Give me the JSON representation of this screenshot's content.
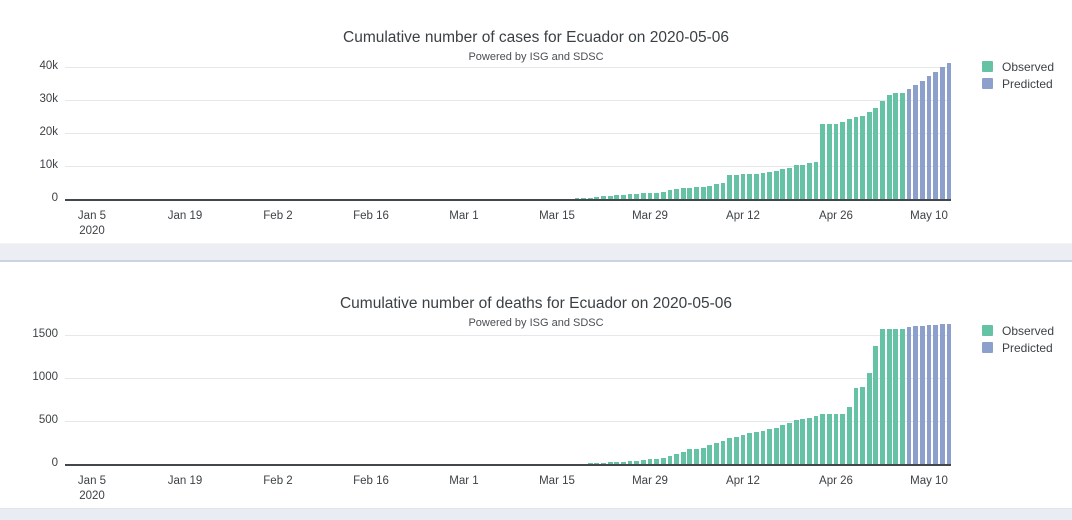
{
  "page": {
    "background": "#ffffff",
    "divider_color": "#eceef4",
    "divider_border": "#ccd3e0"
  },
  "colors": {
    "observed": "#66c2a5",
    "predicted": "#8da0cb",
    "axis_line": "#42474c",
    "gridline": "#e5e7ea"
  },
  "chart_data": [
    {
      "type": "bar",
      "title": "Cumulative number of cases for Ecuador on 2020-05-06",
      "subtitle": "Powered by ISG and SDSC",
      "xlabel": "",
      "ylabel": "",
      "grid": true,
      "legend_position": "top-right",
      "ylim": [
        0,
        42500
      ],
      "y_ticks": [
        {
          "label": "0",
          "value": 0
        },
        {
          "label": "10k",
          "value": 10000
        },
        {
          "label": "20k",
          "value": 20000
        },
        {
          "label": "30k",
          "value": 30000
        },
        {
          "label": "40k",
          "value": 40000
        }
      ],
      "x_ticks": [
        {
          "label": "Jan 5",
          "sublabel": "2020",
          "day": 0
        },
        {
          "label": "Jan 19",
          "day": 14
        },
        {
          "label": "Feb 2",
          "day": 28
        },
        {
          "label": "Feb 16",
          "day": 42
        },
        {
          "label": "Mar 1",
          "day": 56
        },
        {
          "label": "Mar 15",
          "day": 70
        },
        {
          "label": "Mar 29",
          "day": 84
        },
        {
          "label": "Apr 12",
          "day": 98
        },
        {
          "label": "Apr 26",
          "day": 112
        },
        {
          "label": "May 10",
          "day": 126
        }
      ],
      "series": [
        {
          "name": "Observed",
          "color": "#66c2a5",
          "start_date": "2020-03-01",
          "start_day": 56,
          "values": [
            6,
            6,
            7,
            10,
            13,
            13,
            14,
            14,
            15,
            15,
            17,
            17,
            23,
            28,
            37,
            58,
            111,
            168,
            260,
            426,
            506,
            789,
            981,
            1082,
            1173,
            1403,
            1595,
            1823,
            1924,
            1962,
            2240,
            2748,
            3163,
            3368,
            3465,
            3646,
            3747,
            3995,
            4450,
            4965,
            7161,
            7257,
            7466,
            7529,
            7603,
            7858,
            8225,
            8450,
            9022,
            9468,
            10128,
            10398,
            10850,
            11183,
            22719,
            22719,
            22719,
            23240,
            24258,
            24675,
            24934,
            26336,
            27464,
            29509,
            31467,
            31881,
            31881
          ]
        },
        {
          "name": "Predicted",
          "color": "#8da0cb",
          "start_date": "2020-05-07",
          "start_day": 123,
          "values": [
            33100,
            34450,
            35800,
            37150,
            38500,
            39850,
            41200
          ]
        }
      ]
    },
    {
      "type": "bar",
      "title": "Cumulative number of deaths for Ecuador on 2020-05-06",
      "subtitle": "Powered by ISG and SDSC",
      "xlabel": "",
      "ylabel": "",
      "grid": true,
      "legend_position": "top-right",
      "ylim": [
        0,
        1750
      ],
      "y_ticks": [
        {
          "label": "0",
          "value": 0
        },
        {
          "label": "500",
          "value": 500
        },
        {
          "label": "1000",
          "value": 1000
        },
        {
          "label": "1500",
          "value": 1500
        }
      ],
      "x_ticks": [
        {
          "label": "Jan 5",
          "sublabel": "2020",
          "day": 0
        },
        {
          "label": "Jan 19",
          "day": 14
        },
        {
          "label": "Feb 2",
          "day": 28
        },
        {
          "label": "Feb 16",
          "day": 42
        },
        {
          "label": "Mar 1",
          "day": 56
        },
        {
          "label": "Mar 15",
          "day": 70
        },
        {
          "label": "Mar 29",
          "day": 84
        },
        {
          "label": "Apr 12",
          "day": 98
        },
        {
          "label": "Apr 26",
          "day": 112
        },
        {
          "label": "May 10",
          "day": 126
        }
      ],
      "series": [
        {
          "name": "Observed",
          "color": "#66c2a5",
          "start_date": "2020-03-01",
          "start_day": 56,
          "values": [
            0,
            0,
            0,
            0,
            0,
            0,
            0,
            0,
            0,
            0,
            0,
            0,
            1,
            2,
            2,
            2,
            2,
            3,
            4,
            7,
            7,
            14,
            18,
            27,
            28,
            34,
            36,
            48,
            58,
            60,
            75,
            93,
            120,
            145,
            172,
            180,
            191,
            220,
            242,
            272,
            297,
            315,
            333,
            355,
            369,
            388,
            403,
            421,
            456,
            474,
            507,
            520,
            537,
            560,
            576,
            576,
            576,
            576,
            663,
            883,
            900,
            1063,
            1371,
            1564,
            1569,
            1569,
            1569
          ]
        },
        {
          "name": "Predicted",
          "color": "#8da0cb",
          "start_date": "2020-05-07",
          "start_day": 123,
          "values": [
            1592,
            1601,
            1609,
            1616,
            1622,
            1628,
            1633
          ]
        }
      ]
    }
  ]
}
